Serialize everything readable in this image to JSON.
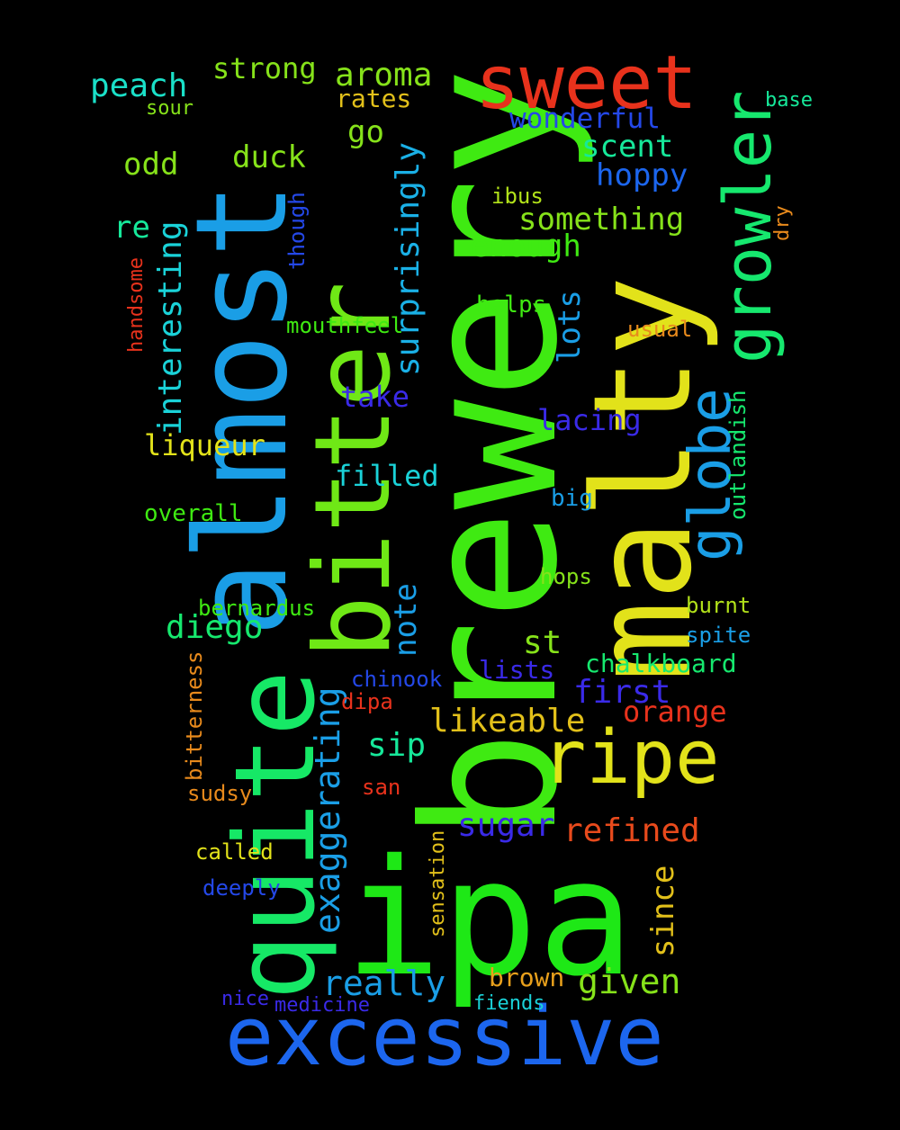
{
  "words": [
    {
      "text": "ipa",
      "color": "#1ee816"
    },
    {
      "text": "brewery",
      "color": "#3fea12"
    },
    {
      "text": "almost",
      "color": "#1a9ee6"
    },
    {
      "text": "malty",
      "color": "#e2e21a"
    },
    {
      "text": "quite",
      "color": "#16e866"
    },
    {
      "text": "bitter",
      "color": "#6fe816"
    },
    {
      "text": "excessive",
      "color": "#1c66ee"
    },
    {
      "text": "sweet",
      "color": "#e8321c"
    },
    {
      "text": "growler",
      "color": "#16e86e"
    },
    {
      "text": "ripe",
      "color": "#e2e21a"
    },
    {
      "text": "globe",
      "color": "#1a9ee6"
    },
    {
      "text": "exaggerating",
      "color": "#1a9ee6"
    },
    {
      "text": "interesting",
      "color": "#1ad2d8"
    },
    {
      "text": "surprisingly",
      "color": "#1ab0e6"
    },
    {
      "text": "aroma",
      "color": "#86e21a"
    },
    {
      "text": "peach",
      "color": "#1ae0c8"
    },
    {
      "text": "strong",
      "color": "#86e21a"
    },
    {
      "text": "wonderful",
      "color": "#2448e8"
    },
    {
      "text": "scent",
      "color": "#16e89a"
    },
    {
      "text": "hoppy",
      "color": "#1c66ee"
    },
    {
      "text": "something",
      "color": "#86e21a"
    },
    {
      "text": "enough",
      "color": "#3fea12"
    },
    {
      "text": "duck",
      "color": "#86e21a"
    },
    {
      "text": "odd",
      "color": "#86e21a"
    },
    {
      "text": "go",
      "color": "#86e21a"
    },
    {
      "text": "rates",
      "color": "#e2c01a"
    },
    {
      "text": "re",
      "color": "#16e89a"
    },
    {
      "text": "though",
      "color": "#2448e8"
    },
    {
      "text": "lots",
      "color": "#1a9ee6"
    },
    {
      "text": "helps",
      "color": "#3fea12"
    },
    {
      "text": "ibus",
      "color": "#b2e21a"
    },
    {
      "text": "base",
      "color": "#16e89a"
    },
    {
      "text": "sour",
      "color": "#86e21a"
    },
    {
      "text": "dry",
      "color": "#e88a1c"
    },
    {
      "text": "handsome",
      "color": "#e8321c"
    },
    {
      "text": "mouthfeel",
      "color": "#3fea12"
    },
    {
      "text": "usual",
      "color": "#e88a1c"
    },
    {
      "text": "take",
      "color": "#3a2ae8"
    },
    {
      "text": "lacing",
      "color": "#3a2ae8"
    },
    {
      "text": "outlandish",
      "color": "#16e86e"
    },
    {
      "text": "liqueur",
      "color": "#e2e21a"
    },
    {
      "text": "filled",
      "color": "#1ad2d8"
    },
    {
      "text": "big",
      "color": "#1a9ee6"
    },
    {
      "text": "overall",
      "color": "#3fea12"
    },
    {
      "text": "hops",
      "color": "#86e21a"
    },
    {
      "text": "bernardus",
      "color": "#3fea12"
    },
    {
      "text": "burnt",
      "color": "#b2e21a"
    },
    {
      "text": "diego",
      "color": "#16e86e"
    },
    {
      "text": "note",
      "color": "#1a9ee6"
    },
    {
      "text": "st",
      "color": "#86e21a"
    },
    {
      "text": "spite",
      "color": "#1a9ee6"
    },
    {
      "text": "chalkboard",
      "color": "#16e86e"
    },
    {
      "text": "lists",
      "color": "#3a2ae8"
    },
    {
      "text": "chinook",
      "color": "#2448e8"
    },
    {
      "text": "first",
      "color": "#3a2ae8"
    },
    {
      "text": "bitterness",
      "color": "#e88a1c"
    },
    {
      "text": "dipa",
      "color": "#e8321c"
    },
    {
      "text": "orange",
      "color": "#e8321c"
    },
    {
      "text": "likeable",
      "color": "#e2c01a"
    },
    {
      "text": "sip",
      "color": "#16e89a"
    },
    {
      "text": "sudsy",
      "color": "#e88a1c"
    },
    {
      "text": "san",
      "color": "#e8321c"
    },
    {
      "text": "sugar",
      "color": "#3a2ae8"
    },
    {
      "text": "refined",
      "color": "#e84a1c"
    },
    {
      "text": "called",
      "color": "#e2e21a"
    },
    {
      "text": "sensation",
      "color": "#e2c01a"
    },
    {
      "text": "since",
      "color": "#e2c01a"
    },
    {
      "text": "deeply",
      "color": "#2448e8"
    },
    {
      "text": "really",
      "color": "#1a9ee6"
    },
    {
      "text": "given",
      "color": "#86e21a"
    },
    {
      "text": "brown",
      "color": "#e8a01c"
    },
    {
      "text": "nice",
      "color": "#3a2ae8"
    },
    {
      "text": "medicine",
      "color": "#3a2ae8"
    },
    {
      "text": "fiends",
      "color": "#1ad2d8"
    }
  ]
}
